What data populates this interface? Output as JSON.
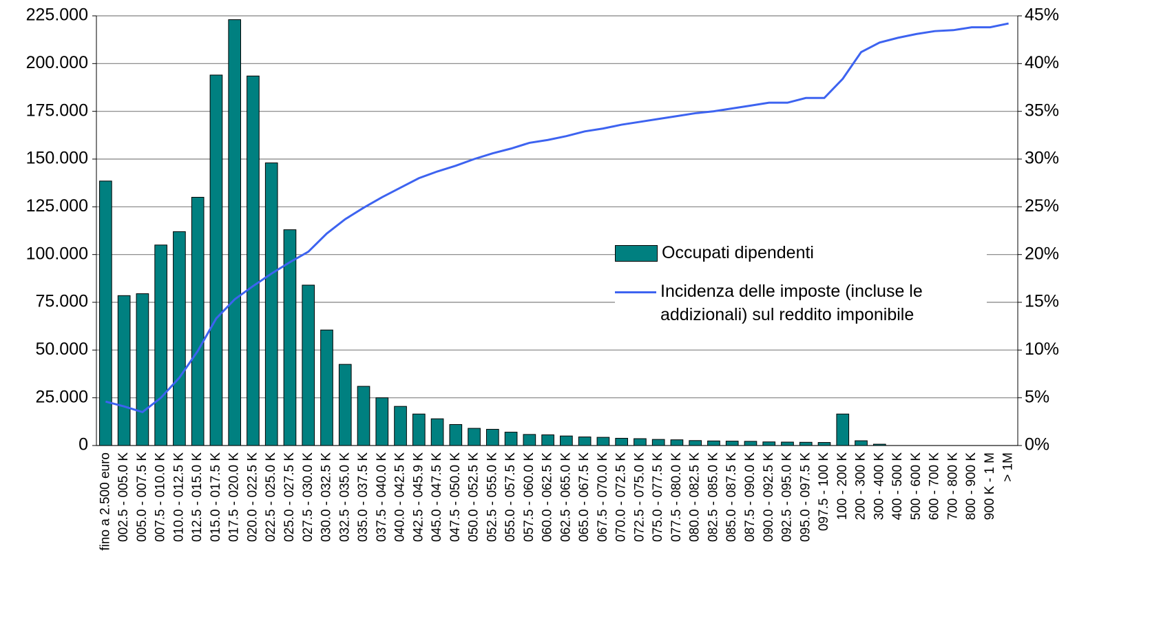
{
  "chart_data": {
    "type": "bar",
    "categories": [
      "fino a 2.500 euro",
      "002.5 - 005.0 K",
      "005.0 - 007.5 K",
      "007.5 - 010.0 K",
      "010.0 - 012.5 K",
      "012.5 - 015.0 K",
      "015.0 - 017.5 K",
      "017.5 - 020.0 K",
      "020.0 - 022.5 K",
      "022.5 - 025.0 K",
      "025.0 - 027.5 K",
      "027.5 - 030.0 K",
      "030.0 - 032.5 K",
      "032.5 - 035.0 K",
      "035.0 - 037.5 K",
      "037.5 - 040.0 K",
      "040.0 - 042.5 K",
      "042.5 - 045.9 K",
      "045.0 - 047.5 K",
      "047.5 - 050.0 K",
      "050.0 - 052.5 K",
      "052.5 - 055.0 K",
      "055.0 - 057.5 K",
      "057.5 - 060.0 K",
      "060.0 - 062.5 K",
      "062.5 - 065.0 K",
      "065.0 - 067.5 K",
      "067.5 - 070.0 K",
      "070.0 - 072.5 K",
      "072.5 - 075.0 K",
      "075.0 - 077.5 K",
      "077.5 - 080.0 K",
      "080.0 - 082.5 K",
      "082.5 - 085.0 K",
      "085.0 - 087.5 K",
      "087.5 - 090.0 K",
      "090.0 - 092.5 K",
      "092.5 - 095.0 K",
      "095.0 - 097.5 K",
      "097.5 - 100 K",
      "100 - 200 K",
      "200 - 300 K",
      "300 - 400 K",
      "400 - 500 K",
      "500 - 600 K",
      "600 - 700 K",
      "700 - 800 K",
      "800 - 900 K",
      "900 K - 1 M",
      "> 1M"
    ],
    "series": [
      {
        "name": "Occupati dipendenti",
        "type": "bar",
        "color": "#008080",
        "values": [
          138500,
          78500,
          79500,
          105000,
          112000,
          130000,
          194000,
          223000,
          193500,
          148000,
          113000,
          84000,
          60500,
          42500,
          31000,
          25000,
          20500,
          16500,
          14000,
          11000,
          9000,
          8500,
          7000,
          5800,
          5600,
          5000,
          4500,
          4300,
          3800,
          3600,
          3200,
          3000,
          2600,
          2400,
          2300,
          2200,
          1900,
          1800,
          1700,
          1600,
          16500,
          2500,
          700,
          0,
          0,
          0,
          0,
          0,
          0,
          0
        ]
      },
      {
        "name": "Incidenza delle imposte (incluse le addizionali) sul reddito imponibile",
        "type": "line",
        "color": "#3d63f0",
        "axis": "y2",
        "values": [
          4.6,
          4.1,
          3.5,
          5.0,
          7.1,
          9.9,
          13.3,
          15.3,
          16.7,
          18.0,
          19.2,
          20.3,
          22.2,
          23.7,
          24.9,
          26.0,
          27.0,
          28.0,
          28.7,
          29.3,
          30.0,
          30.6,
          31.1,
          31.7,
          32.0,
          32.4,
          32.9,
          33.2,
          33.6,
          33.9,
          34.2,
          34.5,
          34.8,
          35.0,
          35.3,
          35.6,
          35.9,
          35.9,
          36.4,
          36.4,
          38.4,
          41.2,
          42.2,
          42.7,
          43.1,
          43.4,
          43.5,
          43.8,
          43.8,
          44.2
        ]
      }
    ],
    "ylim": [
      0,
      225000
    ],
    "yticks": [
      0,
      {
        "value": 25000,
        "label": "25.000"
      },
      {
        "value": 50000,
        "label": "50.000"
      },
      {
        "value": 75000,
        "label": "75.000"
      },
      {
        "value": 100000,
        "label": "100.000"
      },
      {
        "value": 125000,
        "label": "125.000"
      },
      {
        "value": 150000,
        "label": "150.000"
      },
      {
        "value": 175000,
        "label": "175.000"
      },
      {
        "value": 200000,
        "label": "200.000"
      },
      {
        "value": 225000,
        "label": "225.000"
      }
    ],
    "y2lim": [
      0,
      45
    ],
    "y2ticks": [
      {
        "value": 0,
        "label": "0%"
      },
      {
        "value": 5,
        "label": "5%"
      },
      {
        "value": 10,
        "label": "10%"
      },
      {
        "value": 15,
        "label": "15%"
      },
      {
        "value": 20,
        "label": "20%"
      },
      {
        "value": 25,
        "label": "25%"
      },
      {
        "value": 30,
        "label": "30%"
      },
      {
        "value": 35,
        "label": "35%"
      },
      {
        "value": 40,
        "label": "40%"
      },
      {
        "value": 45,
        "label": "45%"
      }
    ],
    "grid": true,
    "legend": "center"
  }
}
